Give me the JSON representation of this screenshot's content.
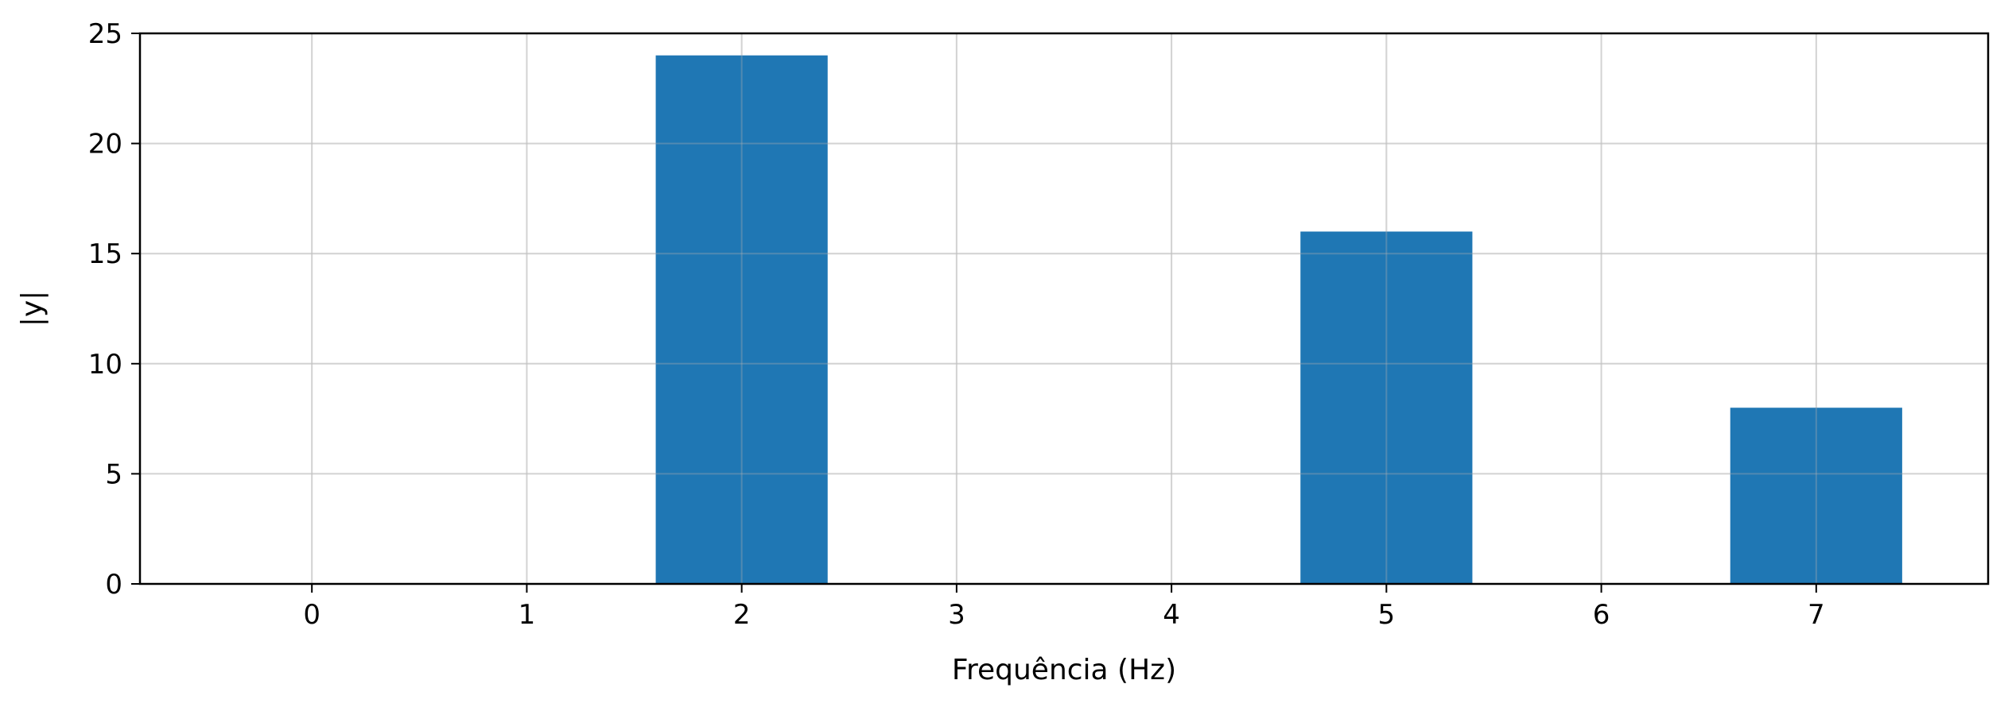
{
  "chart_data": {
    "type": "bar",
    "title": "",
    "xlabel": "Frequência (Hz)",
    "ylabel": "|y|",
    "x_ticks": [
      "0",
      "1",
      "2",
      "3",
      "4",
      "5",
      "6",
      "7"
    ],
    "x": [
      2,
      5,
      7
    ],
    "values": [
      24,
      16,
      8
    ],
    "ylim": [
      0,
      25
    ],
    "xlim": [
      -0.8,
      7.8
    ],
    "y_ticks": [
      "0",
      "5",
      "10",
      "15",
      "20",
      "25"
    ],
    "bar_width": 0.8,
    "grid": true,
    "colors": {
      "bar": "#1f77b4",
      "grid": "#e6e6e6",
      "axis": "#000000"
    }
  }
}
